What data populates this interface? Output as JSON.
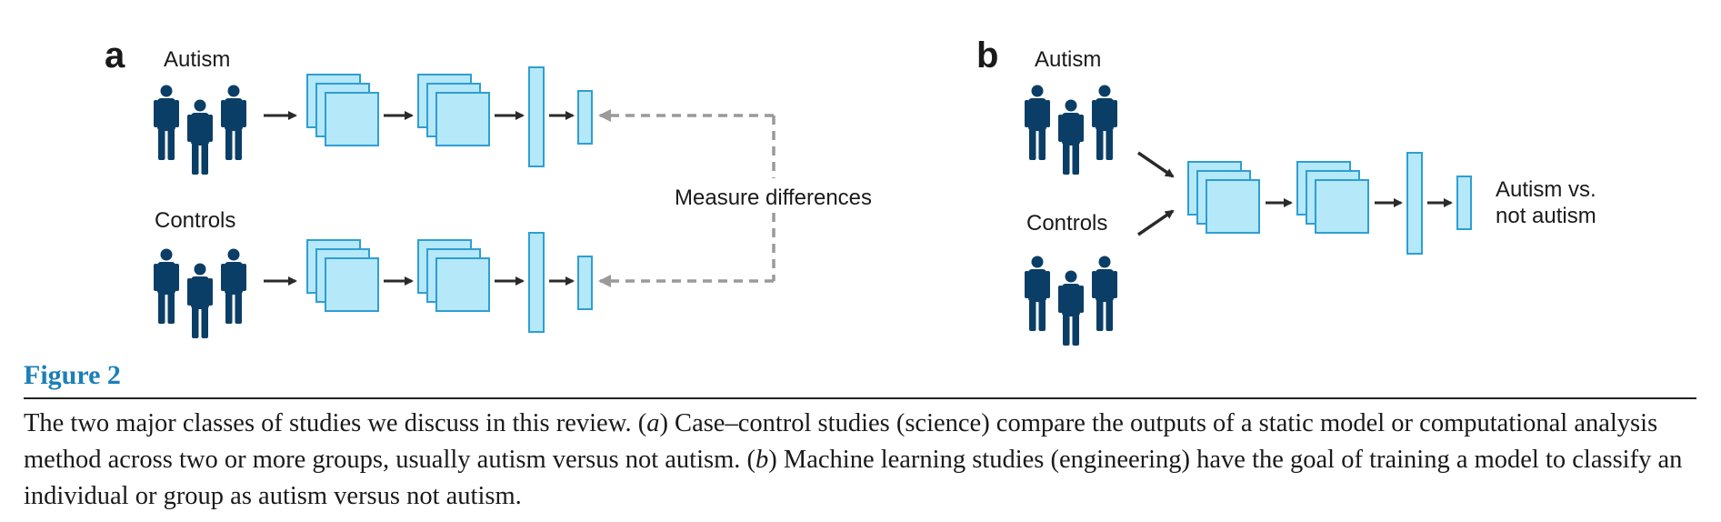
{
  "panel_a": {
    "letter": "a",
    "group1_label": "Autism",
    "group2_label": "Controls",
    "compare_label": "Measure differences"
  },
  "panel_b": {
    "letter": "b",
    "group1_label": "Autism",
    "group2_label": "Controls",
    "output_label_line1": "Autism vs.",
    "output_label_line2": "not autism"
  },
  "figure": {
    "label": "Figure 2",
    "caption_1": "The two major classes of studies we discuss in this review. (",
    "caption_a": "a",
    "caption_2": ") Case–control studies (science) compare the outputs of a static model or computational analysis method across two or more groups, usually autism versus not autism. (",
    "caption_b": "b",
    "caption_3": ") Machine learning studies (engineering) have the goal of training a model to classify an individual or group as autism versus not autism."
  },
  "colors": {
    "people": "#0b3e66",
    "layer_fill": "#b5e8f8",
    "layer_stroke": "#2f9ed4",
    "arrow": "#2a2a2a",
    "dashed_arrow": "#9a9a9a",
    "figure_label": "#1b7fb8"
  }
}
